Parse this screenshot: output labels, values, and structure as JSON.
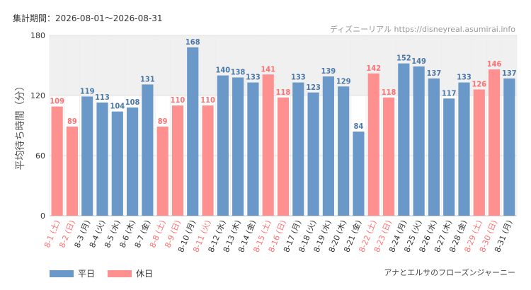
{
  "header": {
    "period": "集計期間：2026-08-01～2026-08-31",
    "credit": "ディズニーリアル https://disneyreal.asumirai.info"
  },
  "footer": {
    "attraction": "アナとエルサのフローズンジャーニー"
  },
  "legend": [
    {
      "label": "平日",
      "color": "#6a98c8"
    },
    {
      "label": "休日",
      "color": "#ff9090"
    }
  ],
  "colors": {
    "weekday": "#6a98c8",
    "holiday": "#ff9090",
    "weekday_text": "#4a78a8",
    "holiday_text": "#ff7070",
    "highlight_band": "#f0f0f0"
  },
  "chart_data": {
    "type": "bar",
    "ylabel": "平均待ち時間（分）",
    "ylim": [
      0,
      180
    ],
    "yticks": [
      0,
      60,
      120,
      180
    ],
    "highlight_band": [
      120,
      180
    ],
    "categories": [
      "8-1 (土)",
      "8-2 (日)",
      "8-3 (月)",
      "8-4 (火)",
      "8-5 (水)",
      "8-6 (木)",
      "8-7 (金)",
      "8-8 (土)",
      "8-9 (日)",
      "8-10 (月)",
      "8-11 (火)",
      "8-12 (水)",
      "8-13 (木)",
      "8-14 (金)",
      "8-15 (土)",
      "8-16 (日)",
      "8-17 (月)",
      "8-18 (火)",
      "8-19 (水)",
      "8-20 (木)",
      "8-21 (金)",
      "8-22 (土)",
      "8-23 (日)",
      "8-24 (月)",
      "8-25 (火)",
      "8-26 (水)",
      "8-27 (木)",
      "8-28 (金)",
      "8-29 (土)",
      "8-30 (日)",
      "8-31 (月)"
    ],
    "values": [
      109,
      89,
      119,
      113,
      104,
      108,
      131,
      89,
      110,
      168,
      110,
      140,
      138,
      133,
      141,
      118,
      133,
      123,
      139,
      129,
      84,
      142,
      118,
      152,
      149,
      137,
      117,
      133,
      126,
      146,
      137
    ],
    "day_type": [
      "休日",
      "休日",
      "平日",
      "平日",
      "平日",
      "平日",
      "平日",
      "休日",
      "休日",
      "平日",
      "休日",
      "平日",
      "平日",
      "平日",
      "休日",
      "休日",
      "平日",
      "平日",
      "平日",
      "平日",
      "平日",
      "休日",
      "休日",
      "平日",
      "平日",
      "平日",
      "平日",
      "平日",
      "休日",
      "休日",
      "平日"
    ]
  }
}
